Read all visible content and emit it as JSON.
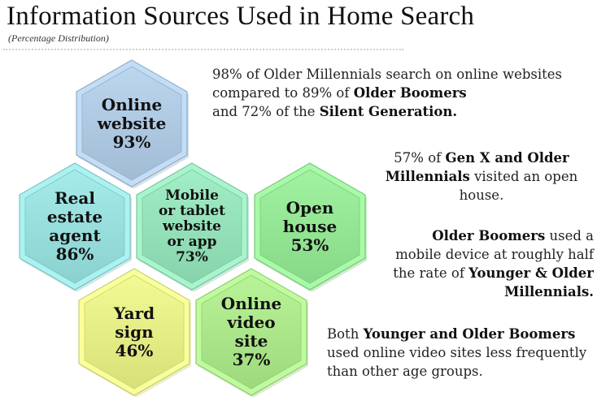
{
  "header": {
    "title": "Information Sources Used in Home Search",
    "subtitle": "(Percentage Distribution)"
  },
  "chart_data": {
    "type": "table",
    "title": "Information Sources Used in Home Search",
    "subtitle": "(Percentage Distribution)",
    "categories": [
      "Online website",
      "Real estate agent",
      "Mobile or tablet website or app",
      "Open house",
      "Yard sign",
      "Online video site"
    ],
    "values": [
      93,
      86,
      73,
      53,
      46,
      37
    ],
    "unit": "%"
  },
  "hexes": [
    {
      "lines": [
        "Online",
        "website",
        "93%"
      ],
      "color": "#a9c4dc"
    },
    {
      "lines": [
        "Real",
        "estate",
        "agent",
        "86%"
      ],
      "color": "#93d9d8"
    },
    {
      "lines": [
        "Mobile",
        "or tablet",
        "website",
        "or app",
        "73%"
      ],
      "color": "#8fdcb4"
    },
    {
      "lines": [
        "Open",
        "house",
        "53%"
      ],
      "color": "#8fe08f"
    },
    {
      "lines": [
        "Yard",
        "sign",
        "46%"
      ],
      "color": "#e0e882"
    },
    {
      "lines": [
        "Online",
        "video",
        "site",
        "37%"
      ],
      "color": "#a6e285"
    }
  ],
  "notes": {
    "n1": {
      "t1": "98% of Older Millennials search on online websites compared to 89% of ",
      "b1": "Older Boomers",
      "t2": " and 72% of the ",
      "b2": "Silent Generation."
    },
    "n2": {
      "t1": "57% of ",
      "b1": "Gen X and Older Millennials",
      "t2": " visited an open house."
    },
    "n3": {
      "b1": "Older Boomers",
      "t1": " used a mobile device at roughly half the rate of ",
      "b2": "Younger & Older Millennials."
    },
    "n4": {
      "t1": "Both ",
      "b1": "Younger and Older Boomers",
      "t2": " used online video sites less frequently than other age groups."
    }
  }
}
